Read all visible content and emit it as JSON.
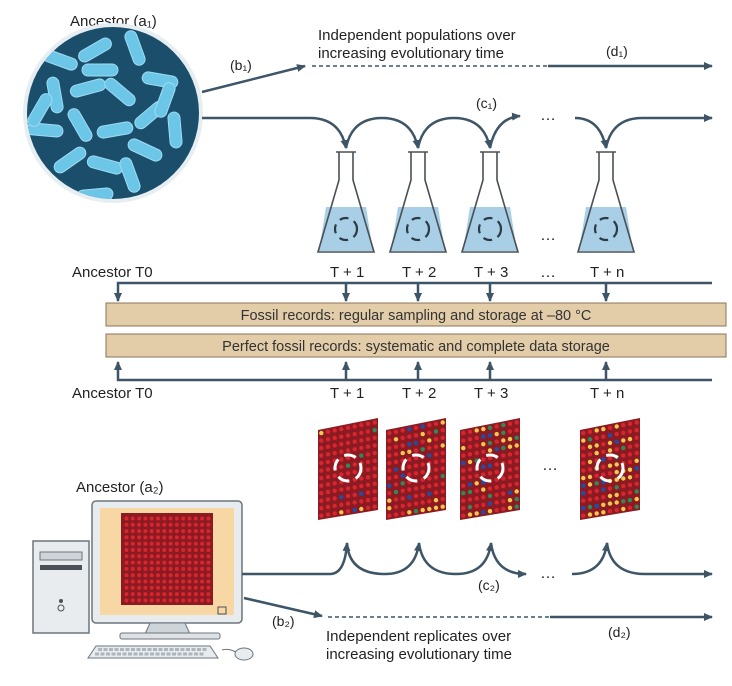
{
  "ancestor_top": "Ancestor (a₁)",
  "ancestor_bottom": "Ancestor (a₂)",
  "label_b1": "(b₁)",
  "label_b2": "(b₂)",
  "label_c1": "(c₁)",
  "label_c2": "(c₂)",
  "label_d1": "(d₁)",
  "label_d2": "(d₂)",
  "top_caption_line1": "Independent populations over",
  "top_caption_line2": "increasing evolutionary time",
  "bottom_caption_line1": "Independent replicates over",
  "bottom_caption_line2": "increasing evolutionary time",
  "ancestor_t0_top": "Ancestor T0",
  "ancestor_t0_bottom": "Ancestor T0",
  "time_points": [
    "T + 1",
    "T + 2",
    "T + 3",
    "T + n"
  ],
  "ellipsis": "…",
  "band_fossil": "Fossil records: regular sampling and storage at –80 °C",
  "band_perfect": "Perfect fossil records: systematic and complete data storage",
  "colors": {
    "arrow": "#3d5566",
    "petri": "#1b4e6b",
    "bacteria": "#6cc6e8",
    "flask_liquid": "#a9cfe6",
    "band_fill": "#e3cda9",
    "band_stroke": "#8a7358",
    "monitor_screen": "#f7d7a4",
    "grid_bg": "#8c1a22",
    "grid_dot": "#d8262e"
  }
}
